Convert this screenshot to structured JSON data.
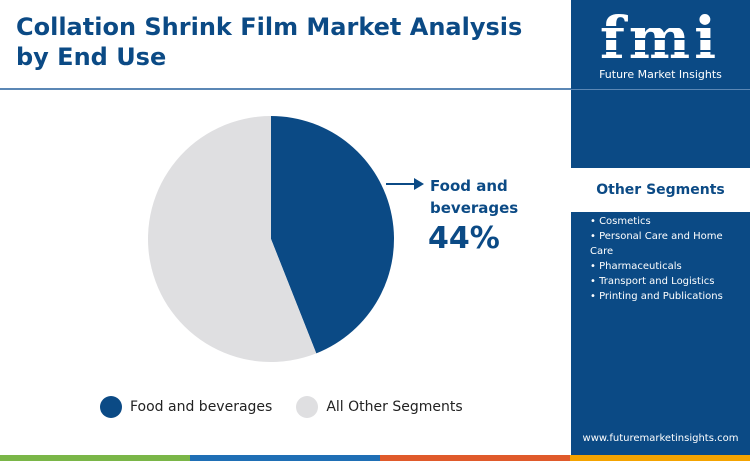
{
  "title": "Collation Shrink Film Market Analysis by End Use",
  "chart_data": {
    "type": "pie",
    "slices": [
      {
        "label": "Food and beverages",
        "value": 44,
        "color": "#0b4a85"
      },
      {
        "label": "All Other Segments",
        "value": 56,
        "color": "#dfdfe1"
      }
    ],
    "annotation": {
      "label": "Food and beverages",
      "value": "44%"
    },
    "legend": [
      "Food and beverages",
      "All Other Segments"
    ],
    "legend_position": "bottom"
  },
  "sidebar": {
    "logo_text": "fmi",
    "logo_subtitle": "Future Market Insights",
    "segments_heading": "Other Segments",
    "segments": [
      "• Cosmetics",
      "• Personal Care and Home Care",
      "• Pharmaceuticals",
      "• Transport and Logistics",
      "• Printing and Publications"
    ],
    "url": "www.futuremarketinsights.com"
  },
  "colors": {
    "brand": "#0b4a85",
    "other": "#dfdfe1",
    "bar": [
      "#1f6fb5",
      "#7ab648",
      "#e05a2b",
      "#f4a300"
    ]
  }
}
